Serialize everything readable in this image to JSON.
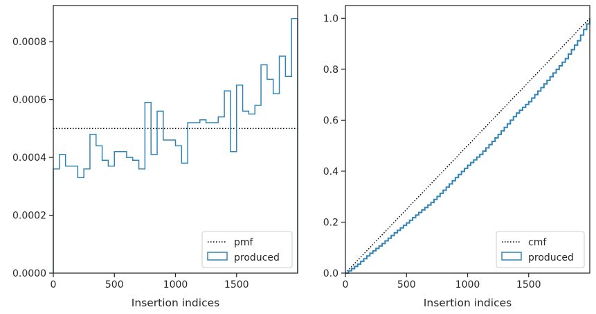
{
  "colors": {
    "produced": "#3183b6",
    "reference": "#000000",
    "axes": "#262626"
  },
  "chart_data": [
    {
      "type": "histogram-step",
      "xlabel": "Insertion indices",
      "ylabel": "",
      "xlim": [
        0,
        2000
      ],
      "ylim": [
        0,
        0.000925
      ],
      "xticks": [
        0,
        500,
        1000,
        1500
      ],
      "yticks": [
        0.0,
        0.0002,
        0.0004,
        0.0006,
        0.0008
      ],
      "ytick_labels": [
        "0.0000",
        "0.0002",
        "0.0004",
        "0.0006",
        "0.0008"
      ],
      "legend": {
        "position": "lower right",
        "entries": [
          "pmf",
          "produced"
        ]
      },
      "series": [
        {
          "name": "pmf",
          "style": "dotted",
          "value": 0.0005
        },
        {
          "name": "produced",
          "style": "step",
          "bin_edges": [
            0,
            50,
            100,
            150,
            200,
            250,
            300,
            350,
            400,
            450,
            500,
            550,
            600,
            650,
            700,
            750,
            800,
            850,
            900,
            950,
            1000,
            1050,
            1100,
            1150,
            1200,
            1250,
            1300,
            1350,
            1400,
            1450,
            1500,
            1550,
            1600,
            1650,
            1700,
            1750,
            1800,
            1850,
            1900,
            1950,
            2000
          ],
          "values": [
            0.00036,
            0.00041,
            0.00037,
            0.00037,
            0.00033,
            0.00036,
            0.00048,
            0.00044,
            0.00039,
            0.00037,
            0.00042,
            0.00042,
            0.0004,
            0.00039,
            0.00036,
            0.00059,
            0.00041,
            0.00056,
            0.00046,
            0.00046,
            0.00044,
            0.00038,
            0.00052,
            0.00052,
            0.00053,
            0.00052,
            0.00052,
            0.00054,
            0.00063,
            0.00042,
            0.00065,
            0.00056,
            0.00055,
            0.00058,
            0.00072,
            0.00067,
            0.00062,
            0.00075,
            0.00068,
            0.00088
          ]
        }
      ]
    },
    {
      "type": "line",
      "xlabel": "Insertion indices",
      "ylabel": "",
      "xlim": [
        0,
        2000
      ],
      "ylim": [
        0,
        1.05
      ],
      "xticks": [
        0,
        500,
        1000,
        1500
      ],
      "yticks": [
        0.0,
        0.2,
        0.4,
        0.6,
        0.8,
        1.0
      ],
      "ytick_labels": [
        "0.0",
        "0.2",
        "0.4",
        "0.6",
        "0.8",
        "1.0"
      ],
      "legend": {
        "position": "lower right",
        "entries": [
          "cmf",
          "produced"
        ]
      },
      "series": [
        {
          "name": "cmf",
          "style": "dotted",
          "x": [
            0,
            2000
          ],
          "y": [
            0,
            1.0
          ]
        },
        {
          "name": "produced",
          "style": "step",
          "x": [
            0,
            100,
            200,
            300,
            400,
            500,
            600,
            700,
            800,
            900,
            1000,
            1100,
            1200,
            1300,
            1400,
            1500,
            1600,
            1700,
            1800,
            1900,
            2000
          ],
          "y": [
            0,
            0.035,
            0.078,
            0.116,
            0.158,
            0.197,
            0.238,
            0.277,
            0.325,
            0.375,
            0.423,
            0.466,
            0.517,
            0.572,
            0.628,
            0.673,
            0.728,
            0.785,
            0.842,
            0.912,
            1.0
          ]
        }
      ]
    }
  ]
}
